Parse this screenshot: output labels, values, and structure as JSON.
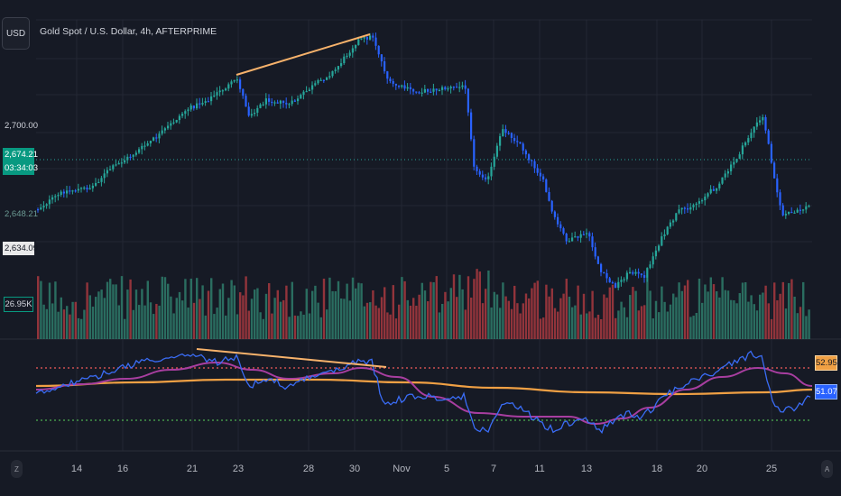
{
  "header": {
    "currency_button": "USD",
    "title": "Gold Spot / U.S. Dollar, 4h, AFTERPRIME"
  },
  "price_scale": {
    "level_label": "2,700.00",
    "live_price": "2,674.21",
    "countdown": "03:34:03",
    "low_label": "2,648.21",
    "marker_label": "2,634.09",
    "volume_label": "26.95K"
  },
  "indicator_scale": {
    "orange_value": "52.95",
    "blue_value": "51.07"
  },
  "time_axis": {
    "labels": [
      "14",
      "16",
      "21",
      "23",
      "28",
      "30",
      "Nov",
      "5",
      "7",
      "11",
      "13",
      "18",
      "20",
      "25"
    ],
    "left_button": "Z",
    "right_button": "A"
  },
  "colors": {
    "background": "#161a25",
    "up": "#26a69a",
    "down": "#2962ff",
    "volume_up": "#2e7d6b",
    "volume_down": "#a8393f",
    "trendline": "#f7b26b",
    "rsi": "#3a6cf5",
    "rsi_ma": "#a83ea0",
    "rsi_long_ma": "#f0a044",
    "upper_band": "#f05a5a",
    "lower_band": "#4caf50",
    "grid": "#232733"
  },
  "icons": {
    "left_button": "zoom-icon",
    "right_button": "auto-scale-icon"
  }
}
